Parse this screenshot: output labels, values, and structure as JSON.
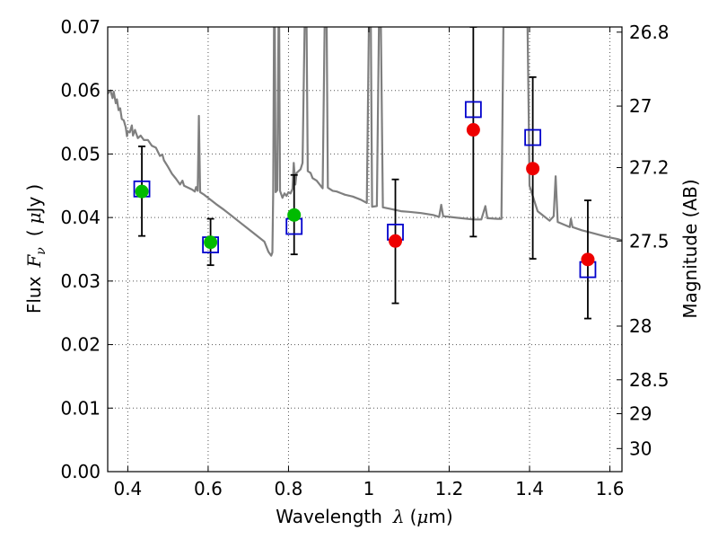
{
  "chart_data": {
    "type": "scatter",
    "xlabel": {
      "text": "Wavelength",
      "symbol": "λ",
      "unit_open": "(",
      "unit_mu": "μ",
      "unit_rest": "m)"
    },
    "ylabel": {
      "text": "Flux",
      "symbol": "F",
      "subscript": "ν",
      "unit_open": "(",
      "unit_mu": "μ",
      "unit_rest": "Jy",
      "unit_close": ")"
    },
    "y2label": "Magnitude (AB)",
    "xlim": [
      0.35,
      1.63
    ],
    "ylim": [
      0.0,
      0.07
    ],
    "grid": true,
    "x_ticks": [
      0.4,
      0.6,
      0.8,
      1.0,
      1.2,
      1.4,
      1.6
    ],
    "x_tick_labels": [
      "0.4",
      "0.6",
      "0.8",
      "1",
      "1.2",
      "1.4",
      "1.6"
    ],
    "y_ticks": [
      0.0,
      0.01,
      0.02,
      0.03,
      0.04,
      0.05,
      0.06,
      0.07
    ],
    "y_tick_labels": [
      "0.00",
      "0.01",
      "0.02",
      "0.03",
      "0.04",
      "0.05",
      "0.06",
      "0.07"
    ],
    "y2_ticks": [
      26.8,
      27,
      27.2,
      27.5,
      28,
      28.5,
      29,
      30
    ],
    "y2_tick_labels": [
      "26.8",
      "27",
      "27.2",
      "27.5",
      "28",
      "28.5",
      "29",
      "30"
    ],
    "colors": {
      "spectrum": "#7f7f7f",
      "model_box": "#0000cc",
      "green_point": "#00bb00",
      "red_point": "#ee0000",
      "errorbar": "#000000",
      "grid": "#555555"
    },
    "series": [
      {
        "points": [
          {
            "x": 0.435,
            "y": 0.0442
          }
        ]
      }
    ],
    "model_photometry": [
      {
        "x": 0.435,
        "y": 0.0445
      },
      {
        "x": 0.606,
        "y": 0.0357
      },
      {
        "x": 0.814,
        "y": 0.0386
      },
      {
        "x": 1.066,
        "y": 0.0377
      },
      {
        "x": 1.26,
        "y": 0.057
      },
      {
        "x": 1.408,
        "y": 0.0526
      },
      {
        "x": 1.545,
        "y": 0.0318
      }
    ],
    "green_points": [
      {
        "x": 0.435,
        "y": 0.0441,
        "err_lo": 0.0371,
        "err_hi": 0.0512
      },
      {
        "x": 0.606,
        "y": 0.0361,
        "err_lo": 0.0325,
        "err_hi": 0.0398
      },
      {
        "x": 0.814,
        "y": 0.0404,
        "err_lo": 0.0342,
        "err_hi": 0.0467
      }
    ],
    "red_points": [
      {
        "x": 1.066,
        "y": 0.0363,
        "err_lo": 0.0265,
        "err_hi": 0.046
      },
      {
        "x": 1.26,
        "y": 0.0538,
        "err_lo": 0.037,
        "err_hi": 0.07
      },
      {
        "x": 1.408,
        "y": 0.0477,
        "err_lo": 0.0335,
        "err_hi": 0.0621
      },
      {
        "x": 1.545,
        "y": 0.0334,
        "err_lo": 0.0241,
        "err_hi": 0.0427
      }
    ],
    "spectrum": [
      [
        0.35,
        0.0595
      ],
      [
        0.357,
        0.06
      ],
      [
        0.362,
        0.0588
      ],
      [
        0.365,
        0.0598
      ],
      [
        0.37,
        0.058
      ],
      [
        0.373,
        0.0586
      ],
      [
        0.377,
        0.0569
      ],
      [
        0.381,
        0.0572
      ],
      [
        0.385,
        0.0555
      ],
      [
        0.39,
        0.0553
      ],
      [
        0.395,
        0.0542
      ],
      [
        0.398,
        0.0528
      ],
      [
        0.4,
        0.0536
      ],
      [
        0.405,
        0.0534
      ],
      [
        0.41,
        0.0545
      ],
      [
        0.413,
        0.0529
      ],
      [
        0.418,
        0.0538
      ],
      [
        0.425,
        0.0525
      ],
      [
        0.432,
        0.0529
      ],
      [
        0.44,
        0.0522
      ],
      [
        0.45,
        0.0522
      ],
      [
        0.46,
        0.0513
      ],
      [
        0.47,
        0.051
      ],
      [
        0.48,
        0.0497
      ],
      [
        0.486,
        0.0499
      ],
      [
        0.49,
        0.049
      ],
      [
        0.5,
        0.048
      ],
      [
        0.51,
        0.0469
      ],
      [
        0.52,
        0.0461
      ],
      [
        0.53,
        0.0452
      ],
      [
        0.536,
        0.0458
      ],
      [
        0.54,
        0.045
      ],
      [
        0.55,
        0.0447
      ],
      [
        0.56,
        0.0444
      ],
      [
        0.567,
        0.0441
      ],
      [
        0.57,
        0.0448
      ],
      [
        0.574,
        0.0442
      ],
      [
        0.577,
        0.056
      ],
      [
        0.58,
        0.044
      ],
      [
        0.59,
        0.0436
      ],
      [
        0.6,
        0.0431
      ],
      [
        0.62,
        0.0421
      ],
      [
        0.64,
        0.0412
      ],
      [
        0.66,
        0.0402
      ],
      [
        0.68,
        0.0392
      ],
      [
        0.7,
        0.0382
      ],
      [
        0.72,
        0.0372
      ],
      [
        0.74,
        0.0362
      ],
      [
        0.75,
        0.0346
      ],
      [
        0.757,
        0.034
      ],
      [
        0.76,
        0.0345
      ],
      [
        0.762,
        0.044
      ],
      [
        0.764,
        0.07
      ],
      [
        0.766,
        0.07
      ],
      [
        0.768,
        0.044
      ],
      [
        0.772,
        0.0443
      ],
      [
        0.775,
        0.07
      ],
      [
        0.777,
        0.07
      ],
      [
        0.779,
        0.0442
      ],
      [
        0.785,
        0.0431
      ],
      [
        0.79,
        0.0438
      ],
      [
        0.795,
        0.0434
      ],
      [
        0.8,
        0.044
      ],
      [
        0.805,
        0.0438
      ],
      [
        0.81,
        0.0445
      ],
      [
        0.813,
        0.0486
      ],
      [
        0.817,
        0.0452
      ],
      [
        0.82,
        0.047
      ],
      [
        0.83,
        0.0476
      ],
      [
        0.835,
        0.0486
      ],
      [
        0.84,
        0.07
      ],
      [
        0.845,
        0.07
      ],
      [
        0.848,
        0.0473
      ],
      [
        0.855,
        0.047
      ],
      [
        0.86,
        0.0462
      ],
      [
        0.87,
        0.0458
      ],
      [
        0.88,
        0.045
      ],
      [
        0.885,
        0.0446
      ],
      [
        0.89,
        0.07
      ],
      [
        0.895,
        0.07
      ],
      [
        0.898,
        0.0447
      ],
      [
        0.91,
        0.0442
      ],
      [
        0.92,
        0.0441
      ],
      [
        0.94,
        0.0436
      ],
      [
        0.96,
        0.0433
      ],
      [
        0.98,
        0.0428
      ],
      [
        0.995,
        0.0423
      ],
      [
        1.0,
        0.07
      ],
      [
        1.005,
        0.07
      ],
      [
        1.008,
        0.0417
      ],
      [
        1.02,
        0.0418
      ],
      [
        1.025,
        0.07
      ],
      [
        1.03,
        0.07
      ],
      [
        1.035,
        0.0416
      ],
      [
        1.05,
        0.0414
      ],
      [
        1.08,
        0.041
      ],
      [
        1.1,
        0.0409
      ],
      [
        1.13,
        0.0407
      ],
      [
        1.16,
        0.0404
      ],
      [
        1.175,
        0.0401
      ],
      [
        1.18,
        0.042
      ],
      [
        1.185,
        0.0402
      ],
      [
        1.2,
        0.0401
      ],
      [
        1.23,
        0.0399
      ],
      [
        1.26,
        0.0397
      ],
      [
        1.28,
        0.0397
      ],
      [
        1.29,
        0.0418
      ],
      [
        1.295,
        0.0399
      ],
      [
        1.32,
        0.0398
      ],
      [
        1.33,
        0.0398
      ],
      [
        1.335,
        0.07
      ],
      [
        1.395,
        0.07
      ],
      [
        1.398,
        0.056
      ],
      [
        1.4,
        0.045
      ],
      [
        1.42,
        0.041
      ],
      [
        1.44,
        0.04
      ],
      [
        1.45,
        0.0395
      ],
      [
        1.46,
        0.0402
      ],
      [
        1.465,
        0.0465
      ],
      [
        1.47,
        0.0393
      ],
      [
        1.5,
        0.0385
      ],
      [
        1.503,
        0.0398
      ],
      [
        1.507,
        0.0385
      ],
      [
        1.53,
        0.038
      ],
      [
        1.56,
        0.0375
      ],
      [
        1.59,
        0.037
      ],
      [
        1.62,
        0.0366
      ],
      [
        1.63,
        0.0364
      ]
    ]
  }
}
